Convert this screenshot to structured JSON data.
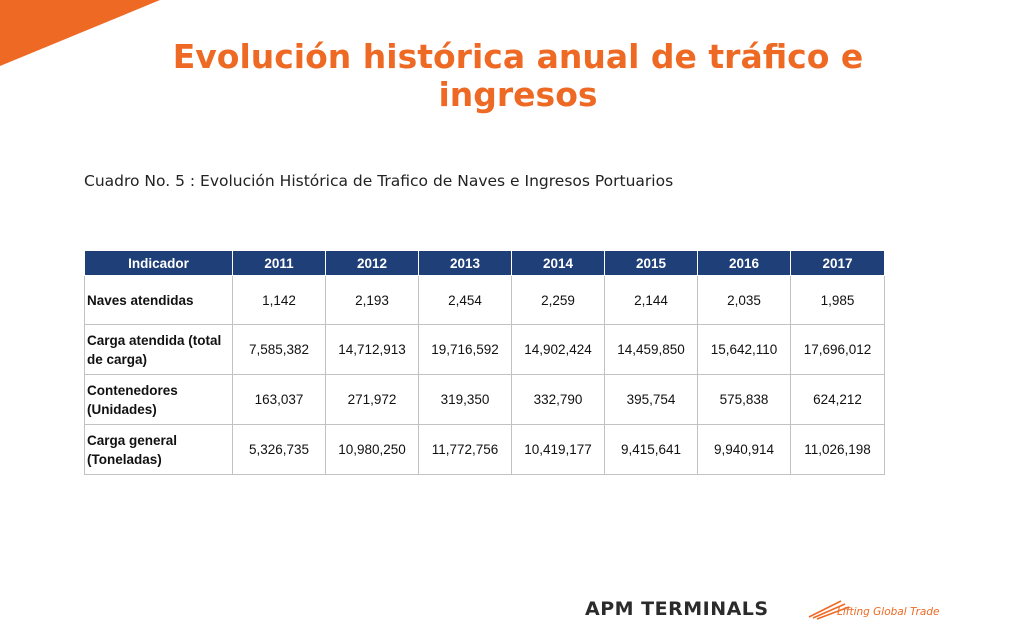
{
  "title": "Evolución histórica anual de tráfico e ingresos",
  "caption": "Cuadro  No. 5 : Evolución Histórica de Trafico de Naves e Ingresos Portuarios",
  "table": {
    "headers": [
      "Indicador",
      "2011",
      "2012",
      "2013",
      "2014",
      "2015",
      "2016",
      "2017"
    ],
    "rows": [
      {
        "label": "Naves atendidas",
        "values": [
          "1,142",
          "2,193",
          "2,454",
          "2,259",
          "2,144",
          "2,035",
          "1,985"
        ]
      },
      {
        "label": "Carga atendida (total de carga)",
        "values": [
          "7,585,382",
          "14,712,913",
          "19,716,592",
          "14,902,424",
          "14,459,850",
          "15,642,110",
          "17,696,012"
        ]
      },
      {
        "label": "Contenedores (Unidades)",
        "values": [
          "163,037",
          "271,972",
          "319,350",
          "332,790",
          "395,754",
          "575,838",
          "624,212"
        ]
      },
      {
        "label": "Carga general (Toneladas)",
        "values": [
          "5,326,735",
          "10,980,250",
          "11,772,756",
          "10,419,177",
          "9,415,641",
          "9,940,914",
          "11,026,198"
        ]
      }
    ]
  },
  "brand": {
    "name": "APM TERMINALS",
    "tagline": "Lifting Global Trade"
  },
  "colors": {
    "accent": "#ee6a24",
    "header_bg": "#1f3f78"
  }
}
